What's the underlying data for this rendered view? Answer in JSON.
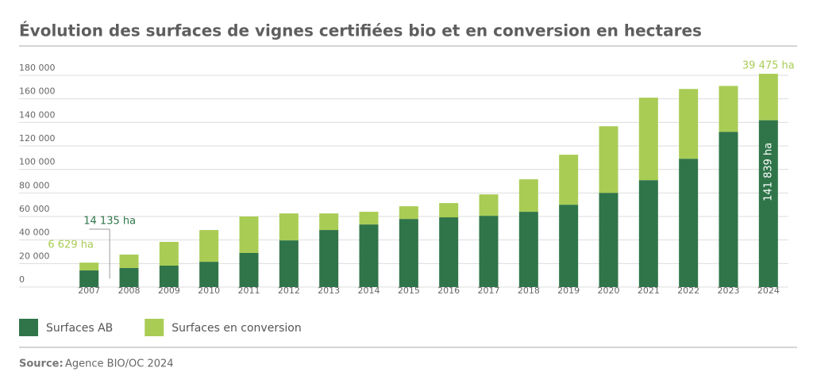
{
  "chart_data": {
    "type": "stacked-bar",
    "title": "Évolution des surfaces de vignes certifiées bio et en conversion en hectares",
    "categories": [
      "2007",
      "2008",
      "2009",
      "2010",
      "2011",
      "2012",
      "2013",
      "2014",
      "2015",
      "2016",
      "2017",
      "2018",
      "2019",
      "2020",
      "2021",
      "2022",
      "2023",
      "2024"
    ],
    "series": [
      {
        "name": "Surfaces AB",
        "color": "#2f7549",
        "values": [
          14135,
          16200,
          18200,
          21500,
          29000,
          39700,
          48500,
          53200,
          57900,
          59300,
          60600,
          64000,
          70000,
          80100,
          90900,
          109100,
          132000,
          141839
        ],
        "value_labels": [
          "14 135 ha",
          null,
          null,
          null,
          null,
          null,
          null,
          null,
          null,
          null,
          null,
          null,
          null,
          null,
          null,
          null,
          null,
          "141 839 ha"
        ]
      },
      {
        "name": "Surfaces en conversion",
        "color": "#a9cc55",
        "values": [
          6629,
          11400,
          20200,
          27000,
          31000,
          22900,
          14100,
          10800,
          10800,
          12100,
          18200,
          27600,
          42500,
          56600,
          70100,
          59300,
          39000,
          39475
        ],
        "value_labels": [
          "6 629 ha",
          null,
          null,
          null,
          null,
          null,
          null,
          null,
          null,
          null,
          null,
          null,
          null,
          null,
          null,
          null,
          null,
          "39 475 ha"
        ]
      }
    ],
    "ylim": [
      0,
      180000
    ],
    "yticks": [
      0,
      {
        "value": 20000,
        "label": "20 000"
      },
      {
        "value": 40000,
        "label": "40 000"
      },
      {
        "value": 60000,
        "label": "60 000"
      },
      {
        "value": 80000,
        "label": "80 000"
      },
      {
        "value": 100000,
        "label": "100 000"
      },
      {
        "value": 120000,
        "label": "120 000"
      },
      {
        "value": 140000,
        "label": "140 000"
      },
      {
        "value": 160000,
        "label": "160 000"
      },
      {
        "value": 180000,
        "label": "180 000"
      }
    ],
    "grid": true,
    "legend": "bottom-left",
    "source_label": "Source:",
    "source_text": "Agence BIO/OC 2024"
  }
}
